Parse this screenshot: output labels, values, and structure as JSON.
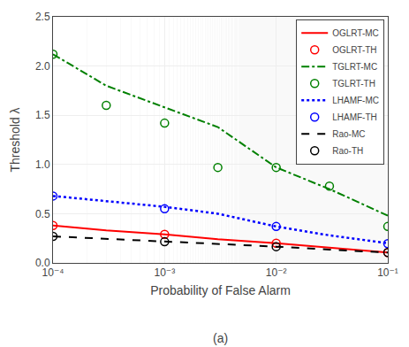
{
  "chart_data": {
    "type": "line",
    "subtitle": "(a)",
    "xlabel": "Probability of False Alarm",
    "ylabel": "Threshold λ",
    "log": "x",
    "grid": true,
    "legend": "upper right",
    "xlim": [
      0.0001,
      0.1
    ],
    "xticks": [
      {
        "value": 0.0001,
        "label": "10⁻⁴"
      },
      {
        "value": 0.001,
        "label": "10⁻³"
      },
      {
        "value": 0.01,
        "label": "10⁻²"
      },
      {
        "value": 0.1,
        "label": "10⁻¹"
      }
    ],
    "ylim": [
      0,
      2.5
    ],
    "yticks": [
      {
        "value": 0,
        "label": "0.0"
      },
      0.5,
      {
        "value": 1.0,
        "label": "1.0"
      },
      1.5,
      {
        "value": 2.0,
        "label": "2.0"
      },
      2.5
    ],
    "series": [
      {
        "name": "OGLRT-MC",
        "type": "line",
        "color": "red",
        "line_style": "solid",
        "x": [
          0.0001,
          0.0003,
          0.001,
          0.003,
          0.01,
          0.03,
          0.1
        ],
        "values": [
          0.38,
          0.33,
          0.29,
          0.24,
          0.2,
          0.155,
          0.105
        ]
      },
      {
        "name": "OGLRT-TH",
        "type": "scatter",
        "color": "red",
        "marker": "circle",
        "x": [
          0.0001,
          0.001,
          0.01,
          0.1
        ],
        "values": [
          0.38,
          0.29,
          0.2,
          0.105
        ]
      },
      {
        "name": "TGLRT-MC",
        "type": "line",
        "color": "green",
        "line_style": "dashdot",
        "x": [
          0.0001,
          0.0003,
          0.001,
          0.003,
          0.01,
          0.03,
          0.1
        ],
        "values": [
          2.12,
          1.8,
          1.58,
          1.38,
          0.97,
          0.75,
          0.48
        ]
      },
      {
        "name": "TGLRT-TH",
        "type": "scatter",
        "color": "green",
        "marker": "circle",
        "x": [
          0.0001,
          0.0003,
          0.001,
          0.003,
          0.01,
          0.03,
          0.1
        ],
        "values": [
          2.12,
          1.6,
          1.42,
          0.97,
          0.97,
          0.78,
          0.37
        ]
      },
      {
        "name": "LHAMF-MC",
        "type": "line",
        "color": "blue",
        "line_style": "dotted",
        "x": [
          0.0001,
          0.0003,
          0.001,
          0.003,
          0.01,
          0.03,
          0.1
        ],
        "values": [
          0.68,
          0.63,
          0.57,
          0.5,
          0.37,
          0.28,
          0.2
        ]
      },
      {
        "name": "LHAMF-TH",
        "type": "scatter",
        "color": "blue",
        "marker": "circle",
        "x": [
          0.0001,
          0.001,
          0.01,
          0.1
        ],
        "values": [
          0.68,
          0.55,
          0.37,
          0.195
        ]
      },
      {
        "name": "Rao-MC",
        "type": "line",
        "color": "black",
        "line_style": "dashed",
        "x": [
          0.0001,
          0.0003,
          0.001,
          0.003,
          0.01,
          0.03,
          0.1
        ],
        "values": [
          0.27,
          0.245,
          0.22,
          0.195,
          0.165,
          0.135,
          0.105
        ]
      },
      {
        "name": "Rao-TH",
        "type": "scatter",
        "color": "black",
        "marker": "circle",
        "x": [
          0.0001,
          0.001,
          0.01,
          0.1
        ],
        "values": [
          0.27,
          0.215,
          0.165,
          0.105
        ]
      }
    ]
  }
}
